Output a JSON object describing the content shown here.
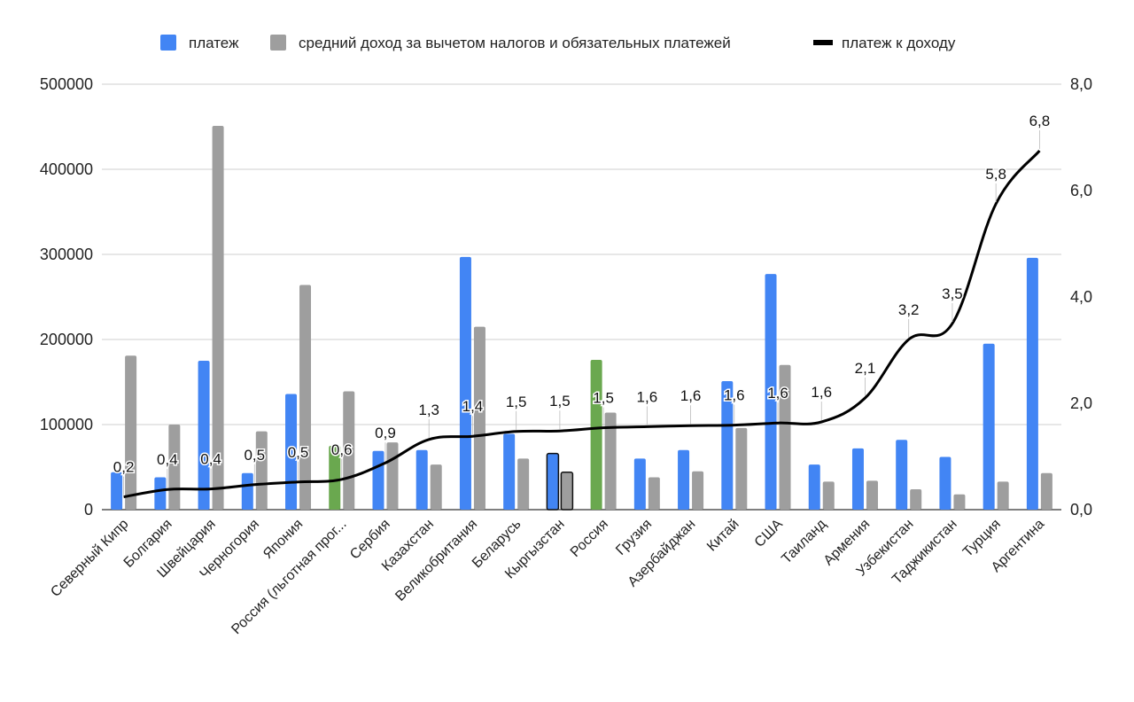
{
  "chart_data": {
    "type": "bar",
    "title": "",
    "categories": [
      "Северный Кипр",
      "Болгария",
      "Швейцария",
      "Черногория",
      "Япония",
      "Россия (льготная прог...",
      "Сербия",
      "Казахстан",
      "Великобритания",
      "Беларусь",
      "Кыргызстан",
      "Россия",
      "Грузия",
      "Азербайджан",
      "Китай",
      "США",
      "Таиланд",
      "Армения",
      "Узбекистан",
      "Таджикистан",
      "Турция",
      "Аргентина"
    ],
    "series": [
      {
        "name": "платеж",
        "type": "bar",
        "axis": "left",
        "color": "#4285f4",
        "values": [
          44000,
          38000,
          175000,
          43000,
          136000,
          75000,
          69000,
          70000,
          297000,
          89000,
          66000,
          176000,
          60000,
          70000,
          151000,
          277000,
          53000,
          72000,
          82000,
          62000,
          195000,
          296000
        ]
      },
      {
        "name": "средний доход за вычетом налогов и обязательных платежей",
        "type": "bar",
        "axis": "left",
        "color": "#9e9e9e",
        "values": [
          181000,
          100000,
          451000,
          92000,
          264000,
          139000,
          79000,
          53000,
          215000,
          60000,
          44000,
          114000,
          38000,
          45000,
          96000,
          170000,
          33000,
          34000,
          24000,
          18000,
          33000,
          43000
        ]
      },
      {
        "name": "платеж к доходу",
        "type": "line",
        "axis": "right",
        "color": "#000000",
        "values": [
          0.24,
          0.38,
          0.39,
          0.47,
          0.52,
          0.57,
          0.88,
          1.32,
          1.38,
          1.47,
          1.48,
          1.54,
          1.56,
          1.58,
          1.59,
          1.63,
          1.65,
          2.1,
          3.2,
          3.5,
          5.75,
          6.75
        ],
        "labels": [
          "0,2",
          "0,4",
          "0,4",
          "0,5",
          "0,5",
          "0,6",
          "0,9",
          "1,3",
          "1,4",
          "1,5",
          "1,5",
          "1,5",
          "1,6",
          "1,6",
          "1,6",
          "1,6",
          "1,6",
          "2,1",
          "3,2",
          "3,5",
          "5,8",
          "6,8"
        ]
      }
    ],
    "highlight": {
      "green_categories": [
        5,
        11
      ],
      "green_color": "#6aa84f",
      "outlined_category": 10
    },
    "left_axis": {
      "ylim": [
        0,
        500000
      ],
      "ticks": [
        "0",
        "100000",
        "200000",
        "300000",
        "400000",
        "500000"
      ],
      "tick_values": [
        0,
        100000,
        200000,
        300000,
        400000,
        500000
      ]
    },
    "right_axis": {
      "ylim": [
        0,
        8
      ],
      "ticks": [
        "0,0",
        "2,0",
        "4,0",
        "6,0",
        "8,0"
      ],
      "tick_values": [
        0,
        2,
        4,
        6,
        8
      ]
    },
    "legend_position": "top-center",
    "grid": true
  }
}
